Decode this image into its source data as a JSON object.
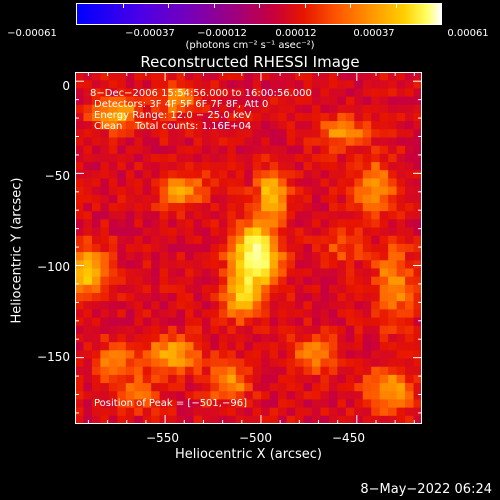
{
  "colorbar": {
    "ticks": [
      "-0.00061",
      "-0.00037",
      "-0.00012",
      "0.00012",
      "0.00037",
      "0.00061"
    ],
    "units": "(photons cm⁻² s⁻¹ asec⁻²)"
  },
  "info": {
    "time_range": "8-Dec-2006 15:54:56.000 to 16:00:56.000",
    "detectors": "Detectors: 3F 4F 5F 6F 7F 8F, Att 0",
    "energy": "Energy Range: 12.0 - 25.0 keV",
    "clean": "Clean    Total counts: 1.16E+04",
    "peak": "Position of Peak = [-501,-96]"
  },
  "timestamp": "8-May-2022 06:24",
  "chart_data": {
    "type": "heatmap",
    "title": "Reconstructed RHESSI Image",
    "xlabel": "Heliocentric X (arcsec)",
    "ylabel": "Heliocentric Y (arcsec)",
    "xlim": [
      -597,
      -416
    ],
    "ylim": [
      -186,
      5
    ],
    "xticks": [
      -550,
      -500,
      -450
    ],
    "yticks": [
      0,
      -50,
      -100,
      -150
    ],
    "zlim": [
      -0.00061,
      0.00061
    ],
    "colormap_stops": [
      "#0000ff",
      "#4d00e6",
      "#7a00b4",
      "#a0007a",
      "#c8003c",
      "#e61400",
      "#ff5a00",
      "#ff9600",
      "#ffd000",
      "#ffff60",
      "#ffffff"
    ],
    "peak_position": [
      -501,
      -96
    ],
    "sources": [
      {
        "x": -501,
        "y": -96,
        "amp": 0.00061,
        "sx": 9,
        "sy": 13
      },
      {
        "x": -492,
        "y": -62,
        "amp": 0.0004,
        "sx": 6,
        "sy": 9
      },
      {
        "x": -508,
        "y": -120,
        "amp": 0.00032,
        "sx": 7,
        "sy": 9
      },
      {
        "x": -590,
        "y": -105,
        "amp": 0.0004,
        "sx": 8,
        "sy": 10
      },
      {
        "x": -575,
        "y": -18,
        "amp": 0.00036,
        "sx": 9,
        "sy": 6
      },
      {
        "x": -542,
        "y": -10,
        "amp": 0.0003,
        "sx": 7,
        "sy": 6
      },
      {
        "x": -540,
        "y": -60,
        "amp": 0.0003,
        "sx": 9,
        "sy": 7
      },
      {
        "x": -455,
        "y": -28,
        "amp": 0.00028,
        "sx": 10,
        "sy": 6
      },
      {
        "x": -438,
        "y": -58,
        "amp": 0.0003,
        "sx": 8,
        "sy": 10
      },
      {
        "x": -428,
        "y": -112,
        "amp": 0.0003,
        "sx": 7,
        "sy": 14
      },
      {
        "x": -430,
        "y": -170,
        "amp": 0.00034,
        "sx": 9,
        "sy": 9
      },
      {
        "x": -545,
        "y": -150,
        "amp": 0.00036,
        "sx": 9,
        "sy": 7
      },
      {
        "x": -515,
        "y": -165,
        "amp": 0.0003,
        "sx": 8,
        "sy": 8
      },
      {
        "x": -575,
        "y": -155,
        "amp": 0.00026,
        "sx": 8,
        "sy": 8
      },
      {
        "x": -470,
        "y": -150,
        "amp": 0.00026,
        "sx": 8,
        "sy": 7
      },
      {
        "x": -562,
        "y": -172,
        "amp": 0.00022,
        "sx": 7,
        "sy": 6
      },
      {
        "x": -455,
        "y": -92,
        "amp": 0.00018,
        "sx": 7,
        "sy": 7
      }
    ]
  }
}
